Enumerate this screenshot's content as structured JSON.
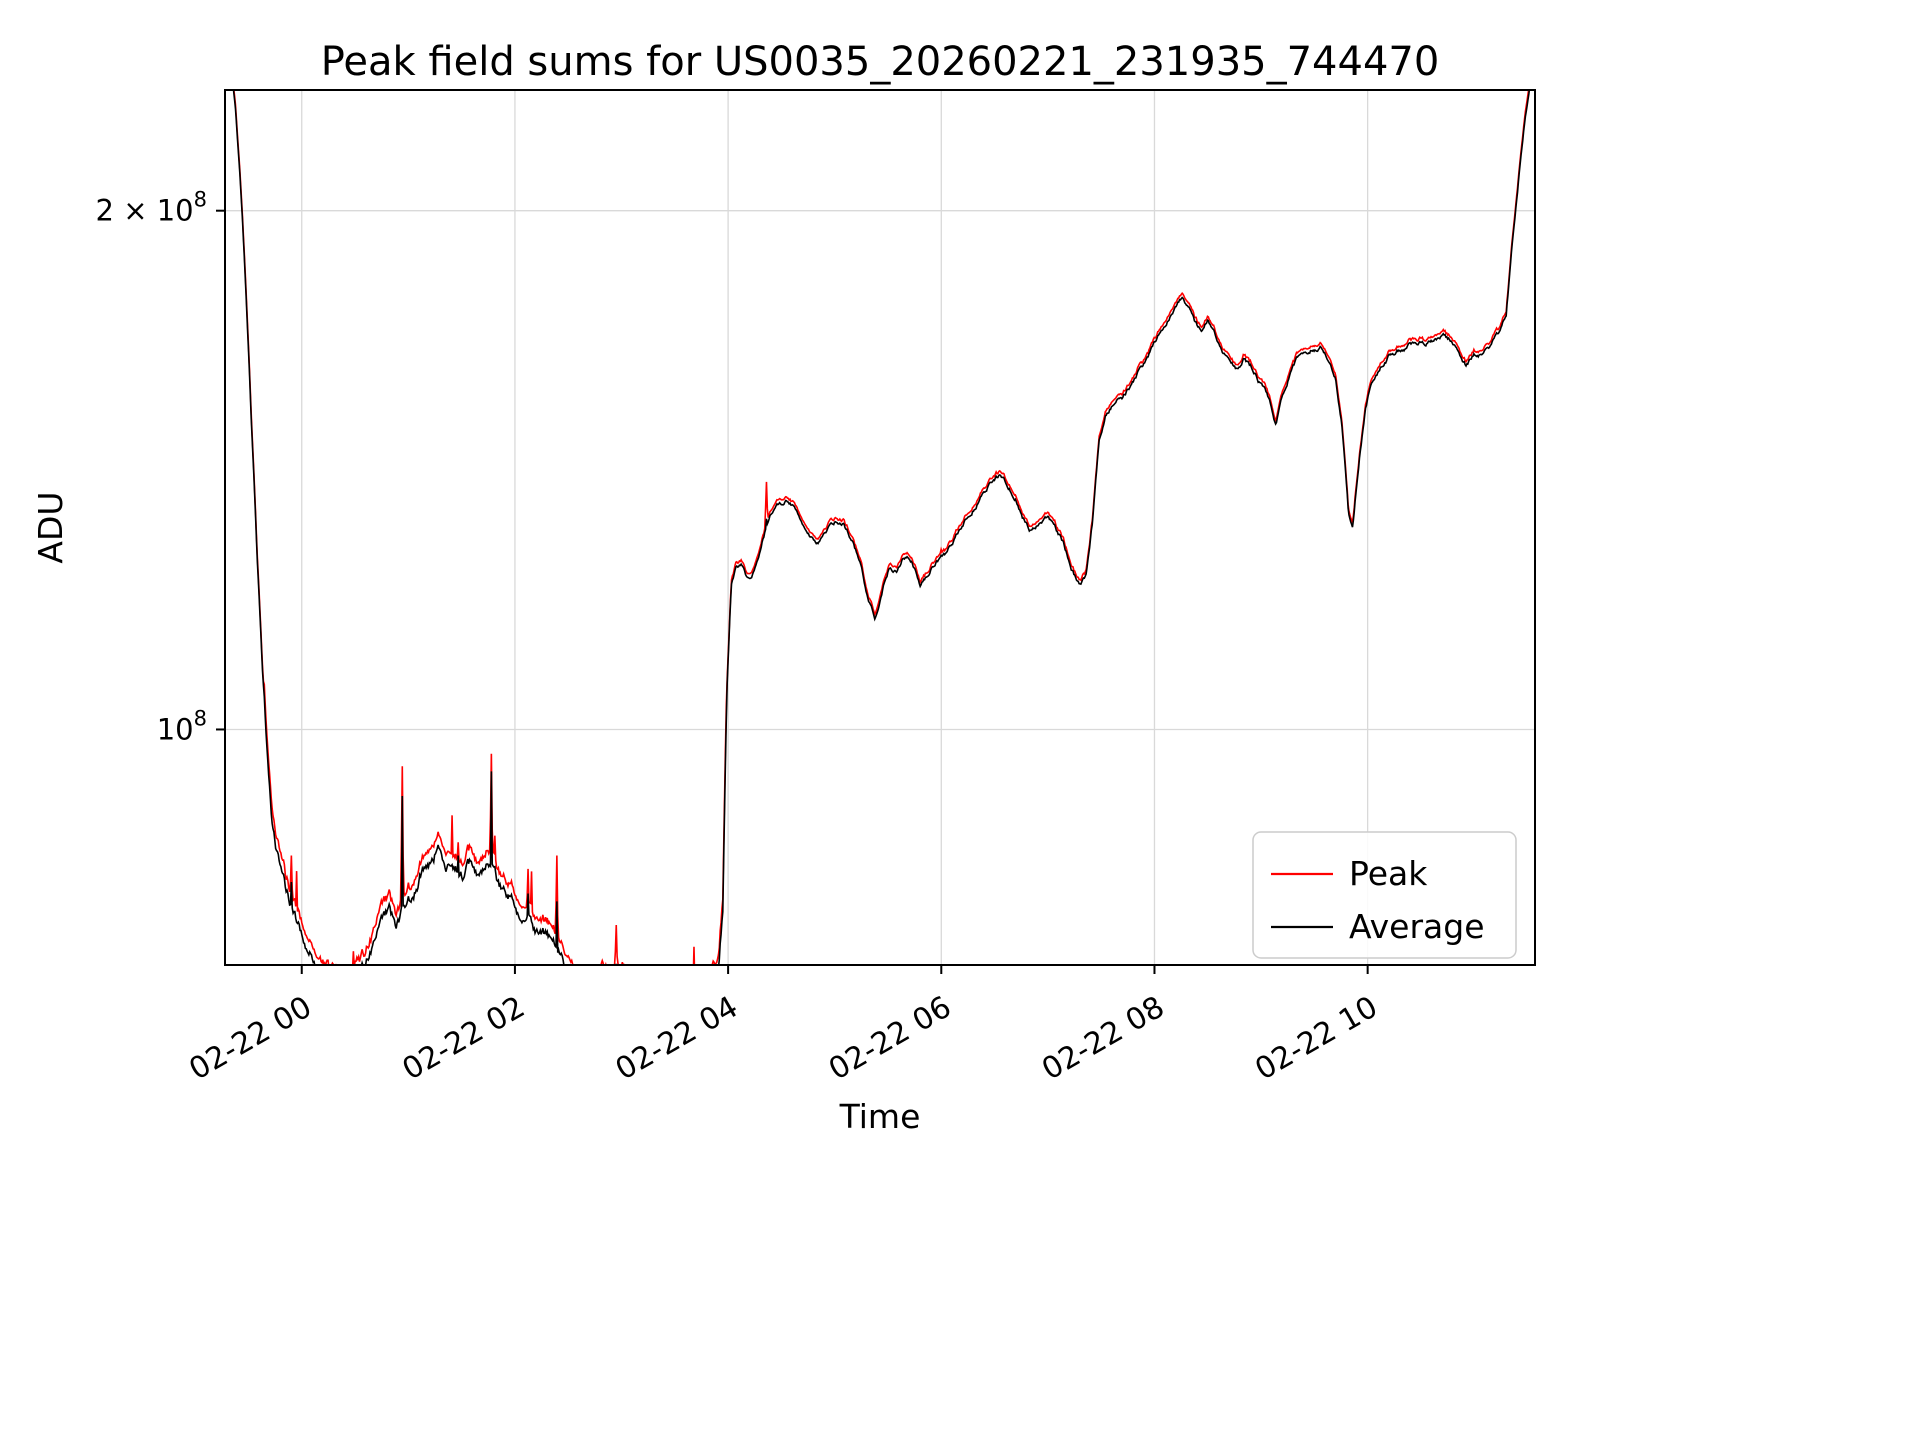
{
  "chart_data": {
    "type": "line",
    "title": "Peak field sums for US0035_20260221_231935_744470",
    "xlabel": "Time",
    "ylabel": "ADU",
    "yscale": "log",
    "grid": true,
    "x_unit": "hours relative to 02-22 00:00",
    "value_unit": "1e8 ADU",
    "xlim_hours": [
      -0.72,
      11.57
    ],
    "ylim": [
      73000000,
      235000000
    ],
    "xticks": [
      {
        "t": 0,
        "label": "02-22 00"
      },
      {
        "t": 2,
        "label": "02-22 02"
      },
      {
        "t": 4,
        "label": "02-22 04"
      },
      {
        "t": 6,
        "label": "02-22 06"
      },
      {
        "t": 8,
        "label": "02-22 08"
      },
      {
        "t": 10,
        "label": "02-22 10"
      }
    ],
    "yticks": [
      {
        "value": 200000000,
        "mantissa": "2 × 10",
        "exp": "8"
      },
      {
        "value": 100000000,
        "mantissa": "10",
        "exp": "8"
      }
    ],
    "legend": {
      "position": "lower right",
      "entries": [
        {
          "name": "Peak",
          "color": "#ff0000"
        },
        {
          "name": "Average",
          "color": "#000000"
        }
      ]
    },
    "colors": {
      "peak": "#ff0000",
      "average": "#000000",
      "grid": "#d9d9d9",
      "spine": "#000000",
      "legend_border": "#cccccc",
      "background": "#ffffff"
    },
    "series_base_points": [
      [
        -0.72,
        2.46
      ],
      [
        -0.66,
        2.42
      ],
      [
        -0.62,
        2.28
      ],
      [
        -0.57,
        2.05
      ],
      [
        -0.52,
        1.78
      ],
      [
        -0.47,
        1.5
      ],
      [
        -0.42,
        1.27
      ],
      [
        -0.37,
        1.09
      ],
      [
        -0.32,
        0.96
      ],
      [
        -0.27,
        0.88
      ],
      [
        -0.21,
        0.83
      ],
      [
        -0.15,
        0.805
      ],
      [
        -0.08,
        0.785
      ],
      [
        -0.02,
        0.765
      ],
      [
        0.05,
        0.748
      ],
      [
        0.15,
        0.728
      ],
      [
        0.25,
        0.712
      ],
      [
        0.35,
        0.705
      ],
      [
        0.45,
        0.712
      ],
      [
        0.55,
        0.722
      ],
      [
        0.65,
        0.74
      ],
      [
        0.75,
        0.765
      ],
      [
        0.82,
        0.78
      ],
      [
        0.88,
        0.768
      ],
      [
        0.95,
        0.785
      ],
      [
        1.02,
        0.795
      ],
      [
        1.1,
        0.82
      ],
      [
        1.18,
        0.84
      ],
      [
        1.27,
        0.852
      ],
      [
        1.33,
        0.845
      ],
      [
        1.42,
        0.832
      ],
      [
        1.5,
        0.826
      ],
      [
        1.58,
        0.83
      ],
      [
        1.66,
        0.822
      ],
      [
        1.74,
        0.828
      ],
      [
        1.82,
        0.82
      ],
      [
        1.9,
        0.805
      ],
      [
        1.98,
        0.792
      ],
      [
        2.06,
        0.782
      ],
      [
        2.15,
        0.772
      ],
      [
        2.25,
        0.762
      ],
      [
        2.35,
        0.75
      ],
      [
        2.45,
        0.738
      ],
      [
        2.55,
        0.722
      ],
      [
        2.65,
        0.71
      ],
      [
        2.75,
        0.706
      ],
      [
        2.85,
        0.716
      ],
      [
        2.95,
        0.722
      ],
      [
        3.05,
        0.712
      ],
      [
        3.15,
        0.7
      ],
      [
        3.25,
        0.694
      ],
      [
        3.4,
        0.69
      ],
      [
        3.55,
        0.692
      ],
      [
        3.7,
        0.697
      ],
      [
        3.82,
        0.703
      ],
      [
        3.9,
        0.71
      ],
      [
        3.95,
        0.78
      ],
      [
        3.99,
        1.05
      ],
      [
        4.03,
        1.21
      ],
      [
        4.08,
        1.24
      ],
      [
        4.14,
        1.245
      ],
      [
        4.18,
        1.225
      ],
      [
        4.24,
        1.235
      ],
      [
        4.3,
        1.27
      ],
      [
        4.38,
        1.325
      ],
      [
        4.46,
        1.355
      ],
      [
        4.54,
        1.358
      ],
      [
        4.62,
        1.345
      ],
      [
        4.7,
        1.318
      ],
      [
        4.78,
        1.295
      ],
      [
        4.84,
        1.285
      ],
      [
        4.92,
        1.302
      ],
      [
        5.0,
        1.318
      ],
      [
        5.08,
        1.312
      ],
      [
        5.16,
        1.29
      ],
      [
        5.24,
        1.248
      ],
      [
        5.32,
        1.185
      ],
      [
        5.38,
        1.162
      ],
      [
        5.45,
        1.21
      ],
      [
        5.52,
        1.245
      ],
      [
        5.58,
        1.238
      ],
      [
        5.65,
        1.262
      ],
      [
        5.72,
        1.252
      ],
      [
        5.8,
        1.212
      ],
      [
        5.88,
        1.228
      ],
      [
        5.96,
        1.255
      ],
      [
        6.04,
        1.262
      ],
      [
        6.12,
        1.285
      ],
      [
        6.2,
        1.315
      ],
      [
        6.28,
        1.335
      ],
      [
        6.36,
        1.36
      ],
      [
        6.46,
        1.39
      ],
      [
        6.56,
        1.405
      ],
      [
        6.62,
        1.385
      ],
      [
        6.7,
        1.362
      ],
      [
        6.76,
        1.328
      ],
      [
        6.84,
        1.305
      ],
      [
        6.92,
        1.318
      ],
      [
        7.0,
        1.332
      ],
      [
        7.06,
        1.312
      ],
      [
        7.14,
        1.285
      ],
      [
        7.22,
        1.24
      ],
      [
        7.3,
        1.21
      ],
      [
        7.36,
        1.225
      ],
      [
        7.42,
        1.32
      ],
      [
        7.48,
        1.47
      ],
      [
        7.54,
        1.525
      ],
      [
        7.62,
        1.55
      ],
      [
        7.7,
        1.558
      ],
      [
        7.78,
        1.585
      ],
      [
        7.86,
        1.615
      ],
      [
        7.94,
        1.645
      ],
      [
        8.02,
        1.685
      ],
      [
        8.1,
        1.72
      ],
      [
        8.18,
        1.755
      ],
      [
        8.26,
        1.785
      ],
      [
        8.32,
        1.76
      ],
      [
        8.38,
        1.72
      ],
      [
        8.44,
        1.7
      ],
      [
        8.5,
        1.728
      ],
      [
        8.56,
        1.7
      ],
      [
        8.62,
        1.662
      ],
      [
        8.7,
        1.635
      ],
      [
        8.78,
        1.618
      ],
      [
        8.84,
        1.64
      ],
      [
        8.92,
        1.62
      ],
      [
        9.0,
        1.585
      ],
      [
        9.08,
        1.552
      ],
      [
        9.14,
        1.5
      ],
      [
        9.2,
        1.565
      ],
      [
        9.28,
        1.615
      ],
      [
        9.36,
        1.648
      ],
      [
        9.46,
        1.662
      ],
      [
        9.56,
        1.668
      ],
      [
        9.64,
        1.64
      ],
      [
        9.7,
        1.6
      ],
      [
        9.76,
        1.5
      ],
      [
        9.82,
        1.335
      ],
      [
        9.86,
        1.302
      ],
      [
        9.92,
        1.43
      ],
      [
        9.98,
        1.535
      ],
      [
        10.04,
        1.592
      ],
      [
        10.12,
        1.625
      ],
      [
        10.2,
        1.648
      ],
      [
        10.3,
        1.662
      ],
      [
        10.4,
        1.672
      ],
      [
        10.5,
        1.672
      ],
      [
        10.6,
        1.682
      ],
      [
        10.7,
        1.695
      ],
      [
        10.78,
        1.682
      ],
      [
        10.86,
        1.648
      ],
      [
        10.92,
        1.628
      ],
      [
        11.0,
        1.648
      ],
      [
        11.08,
        1.652
      ],
      [
        11.16,
        1.672
      ],
      [
        11.24,
        1.7
      ],
      [
        11.3,
        1.74
      ],
      [
        11.36,
        1.92
      ],
      [
        11.42,
        2.1
      ],
      [
        11.48,
        2.28
      ],
      [
        11.54,
        2.42
      ],
      [
        11.57,
        2.46
      ]
    ],
    "peak_spikes": [
      [
        -0.1,
        0.845,
        0.5
      ],
      [
        0.94,
        0.952,
        0.75
      ],
      [
        1.47,
        0.86,
        0.6
      ],
      [
        1.78,
        0.968,
        0.75
      ],
      [
        2.12,
        0.83,
        0.4
      ],
      [
        2.39,
        0.845,
        0.5
      ],
      [
        2.95,
        0.77,
        0.3
      ],
      [
        4.36,
        1.392,
        0.15
      ],
      [
        6.0,
        1.272,
        0.2
      ]
    ]
  }
}
